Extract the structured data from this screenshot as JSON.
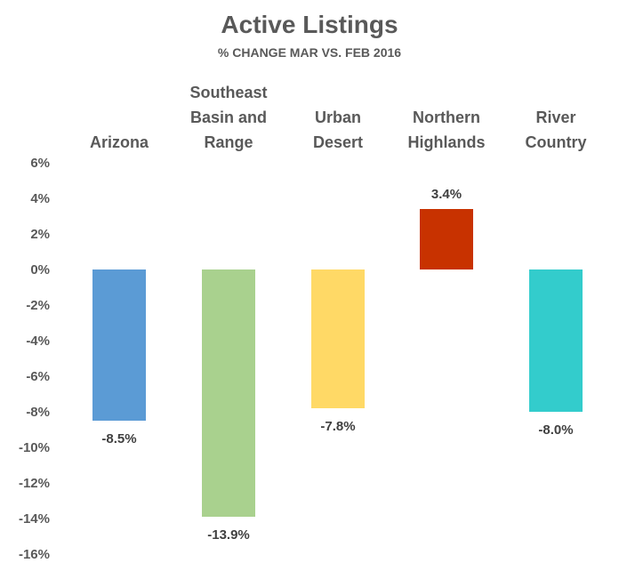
{
  "chart_data": {
    "type": "bar",
    "title": "Active Listings",
    "subtitle": "% CHANGE MAR VS. FEB 2016",
    "categories": [
      [
        "Arizona"
      ],
      [
        "Southeast",
        "Basin and",
        "Range"
      ],
      [
        "Urban",
        "Desert"
      ],
      [
        "Northern",
        "Highlands"
      ],
      [
        "River",
        "Country"
      ]
    ],
    "values": [
      -8.5,
      -13.9,
      -7.8,
      3.4,
      -8.0
    ],
    "data_labels": [
      "-8.5%",
      "-13.9%",
      "-7.8%",
      "3.4%",
      "-8.0%"
    ],
    "colors": [
      "#5B9BD5",
      "#A9D18E",
      "#FFD966",
      "#C83200",
      "#33CCCC"
    ],
    "ylim": [
      -16,
      6
    ],
    "yticks": [
      6,
      4,
      2,
      0,
      -2,
      -4,
      -6,
      -8,
      -10,
      -12,
      -14,
      -16
    ],
    "ytick_labels": [
      "6%",
      "4%",
      "2%",
      "0%",
      "-2%",
      "-4%",
      "-6%",
      "-8%",
      "-10%",
      "-12%",
      "-14%",
      "-16%"
    ],
    "grid": false,
    "legend": "none",
    "xlabel": "",
    "ylabel": ""
  }
}
